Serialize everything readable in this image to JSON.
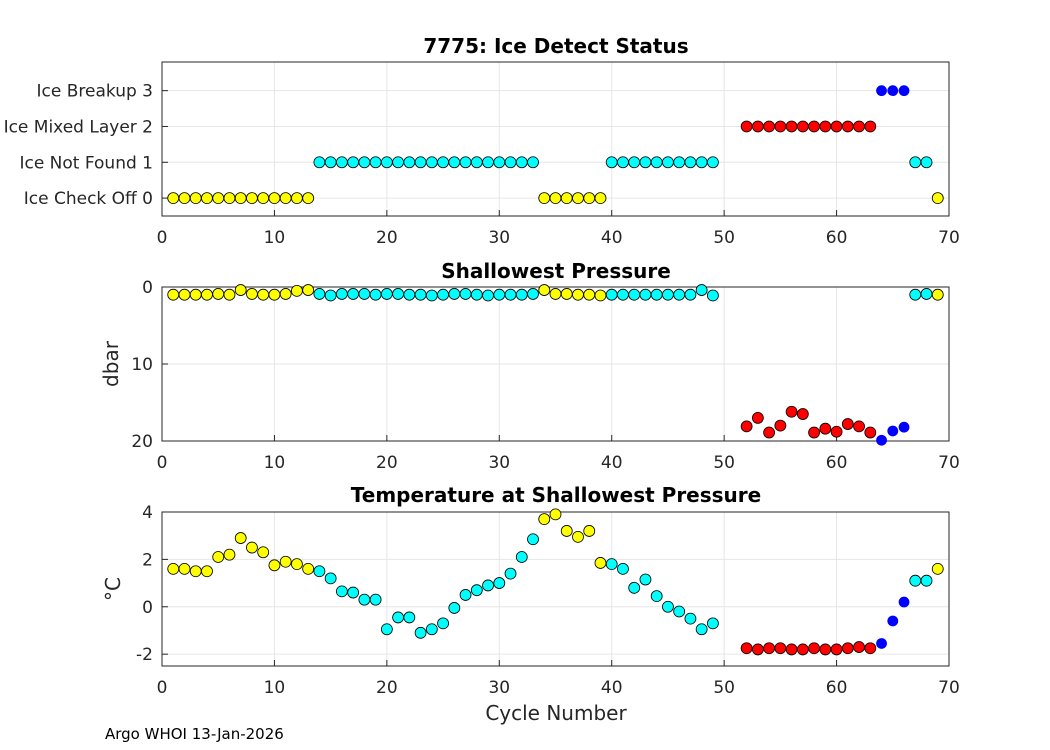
{
  "footer": "Argo WHOI 13-Jan-2026",
  "colors": {
    "yellow": "#ffff00",
    "cyan": "#00ffff",
    "red": "#ff0000",
    "blue": "#0000ff",
    "grid": "#e6e6e6",
    "axis": "#262626"
  },
  "chart_data": [
    {
      "type": "scatter",
      "title": "7775: Ice Detect Status",
      "xlabel": "",
      "ylabel": "",
      "xlim": [
        0,
        70
      ],
      "ylim": [
        -0.5,
        3.8
      ],
      "xticks": [
        0,
        10,
        20,
        30,
        40,
        50,
        60,
        70
      ],
      "yticks": [
        0,
        1,
        2,
        3
      ],
      "ytick_labels": [
        "Ice Check Off 0",
        "Ice Not Found 1",
        "Ice Mixed Layer 2",
        "Ice Breakup 3"
      ],
      "reversed": false,
      "series": [
        {
          "name": "ice check off",
          "color": "yellow",
          "x": [
            1,
            2,
            3,
            4,
            5,
            6,
            7,
            8,
            9,
            10,
            11,
            12,
            13,
            34,
            35,
            36,
            37,
            38,
            39,
            69
          ],
          "y": [
            0,
            0,
            0,
            0,
            0,
            0,
            0,
            0,
            0,
            0,
            0,
            0,
            0,
            0,
            0,
            0,
            0,
            0,
            0,
            0
          ]
        },
        {
          "name": "ice not found",
          "color": "cyan",
          "x": [
            14,
            15,
            16,
            17,
            18,
            19,
            20,
            21,
            22,
            23,
            24,
            25,
            26,
            27,
            28,
            29,
            30,
            31,
            32,
            33,
            40,
            41,
            42,
            43,
            44,
            45,
            46,
            47,
            48,
            49,
            67,
            68
          ],
          "y": [
            1,
            1,
            1,
            1,
            1,
            1,
            1,
            1,
            1,
            1,
            1,
            1,
            1,
            1,
            1,
            1,
            1,
            1,
            1,
            1,
            1,
            1,
            1,
            1,
            1,
            1,
            1,
            1,
            1,
            1,
            1,
            1
          ]
        },
        {
          "name": "ice mixed layer",
          "color": "red",
          "x": [
            52,
            53,
            54,
            55,
            56,
            57,
            58,
            59,
            60,
            61,
            62,
            63
          ],
          "y": [
            2,
            2,
            2,
            2,
            2,
            2,
            2,
            2,
            2,
            2,
            2,
            2
          ]
        },
        {
          "name": "ice breakup",
          "color": "blue",
          "x": [
            64,
            65,
            66
          ],
          "y": [
            3,
            3,
            3
          ]
        }
      ]
    },
    {
      "type": "scatter",
      "title": "Shallowest Pressure",
      "xlabel": "",
      "ylabel": "dbar",
      "xlim": [
        0,
        70
      ],
      "ylim": [
        0,
        20
      ],
      "xticks": [
        0,
        10,
        20,
        30,
        40,
        50,
        60,
        70
      ],
      "yticks": [
        0,
        10,
        20
      ],
      "ytick_labels": [
        "0",
        "10",
        "20"
      ],
      "reversed": true,
      "series": [
        {
          "name": "ice check off",
          "color": "yellow",
          "x": [
            1,
            2,
            3,
            4,
            5,
            6,
            7,
            8,
            9,
            10,
            11,
            12,
            13,
            34,
            35,
            36,
            37,
            38,
            39,
            69
          ],
          "y": [
            1.0,
            1.0,
            1.0,
            1.0,
            0.9,
            1.0,
            0.4,
            0.9,
            1.0,
            1.0,
            0.9,
            0.5,
            0.4,
            0.4,
            0.9,
            0.9,
            1.0,
            1.0,
            1.1,
            1.0
          ]
        },
        {
          "name": "ice not found",
          "color": "cyan",
          "x": [
            14,
            15,
            16,
            17,
            18,
            19,
            20,
            21,
            22,
            23,
            24,
            25,
            26,
            27,
            28,
            29,
            30,
            31,
            32,
            33,
            40,
            41,
            42,
            43,
            44,
            45,
            46,
            47,
            48,
            49,
            67,
            68
          ],
          "y": [
            0.9,
            1.1,
            0.9,
            0.9,
            0.9,
            1.0,
            0.9,
            0.9,
            1.0,
            1.0,
            1.1,
            1.0,
            0.9,
            0.9,
            1.0,
            1.1,
            1.0,
            1.0,
            1.0,
            0.9,
            1.0,
            1.0,
            1.0,
            1.0,
            1.0,
            1.0,
            1.0,
            1.0,
            0.4,
            1.1,
            1.0,
            0.9
          ]
        },
        {
          "name": "ice mixed layer",
          "color": "red",
          "x": [
            52,
            53,
            54,
            55,
            56,
            57,
            58,
            59,
            60,
            61,
            62,
            63
          ],
          "y": [
            18.1,
            17.0,
            18.9,
            18.0,
            16.2,
            16.5,
            18.9,
            18.4,
            18.8,
            17.8,
            18.1,
            18.9
          ]
        },
        {
          "name": "ice breakup",
          "color": "blue",
          "x": [
            64,
            65,
            66
          ],
          "y": [
            19.9,
            18.7,
            18.2
          ]
        }
      ]
    },
    {
      "type": "scatter",
      "title": "Temperature at Shallowest Pressure",
      "xlabel": "Cycle Number",
      "ylabel": "°C",
      "xlim": [
        0,
        70
      ],
      "ylim": [
        -2.5,
        4
      ],
      "xticks": [
        0,
        10,
        20,
        30,
        40,
        50,
        60,
        70
      ],
      "yticks": [
        -2,
        0,
        2,
        4
      ],
      "ytick_labels": [
        "-2",
        "0",
        "2",
        "4"
      ],
      "reversed": false,
      "series": [
        {
          "name": "ice check off",
          "color": "yellow",
          "x": [
            1,
            2,
            3,
            4,
            5,
            6,
            7,
            8,
            9,
            10,
            11,
            12,
            13,
            34,
            35,
            36,
            37,
            38,
            39,
            69
          ],
          "y": [
            1.6,
            1.6,
            1.5,
            1.5,
            2.1,
            2.2,
            2.9,
            2.5,
            2.3,
            1.75,
            1.9,
            1.8,
            1.6,
            3.7,
            3.9,
            3.2,
            2.95,
            3.2,
            1.85,
            1.6
          ]
        },
        {
          "name": "ice not found",
          "color": "cyan",
          "x": [
            14,
            15,
            16,
            17,
            18,
            19,
            20,
            21,
            22,
            23,
            24,
            25,
            26,
            27,
            28,
            29,
            30,
            31,
            32,
            33,
            40,
            41,
            42,
            43,
            44,
            45,
            46,
            47,
            48,
            49,
            67,
            68
          ],
          "y": [
            1.5,
            1.2,
            0.65,
            0.6,
            0.3,
            0.3,
            -0.95,
            -0.45,
            -0.45,
            -1.1,
            -0.95,
            -0.7,
            -0.05,
            0.5,
            0.7,
            0.9,
            1.0,
            1.4,
            2.1,
            2.85,
            1.8,
            1.6,
            0.8,
            1.15,
            0.45,
            0.0,
            -0.2,
            -0.5,
            -0.95,
            -0.7,
            1.1,
            1.1
          ]
        },
        {
          "name": "ice mixed layer",
          "color": "red",
          "x": [
            52,
            53,
            54,
            55,
            56,
            57,
            58,
            59,
            60,
            61,
            62,
            63
          ],
          "y": [
            -1.75,
            -1.8,
            -1.75,
            -1.75,
            -1.8,
            -1.8,
            -1.75,
            -1.8,
            -1.8,
            -1.75,
            -1.7,
            -1.75
          ]
        },
        {
          "name": "ice breakup",
          "color": "blue",
          "x": [
            64,
            65,
            66
          ],
          "y": [
            -1.55,
            -0.6,
            0.2
          ]
        }
      ]
    }
  ]
}
